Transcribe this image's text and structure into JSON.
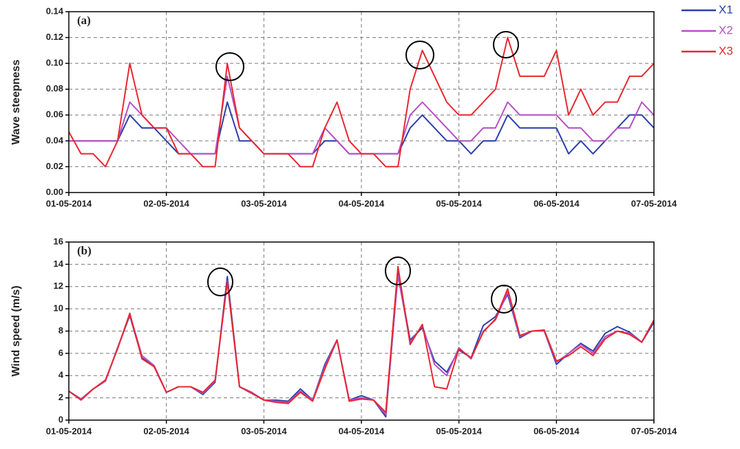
{
  "chart_data": [
    {
      "type": "line",
      "panel_label": "(a)",
      "ylabel": "Wave steepness",
      "legend": "outside right",
      "x": [
        0,
        0.125,
        0.25,
        0.375,
        0.5,
        0.625,
        0.75,
        0.875,
        1,
        1.125,
        1.25,
        1.375,
        1.5,
        1.625,
        1.75,
        1.875,
        2,
        2.125,
        2.25,
        2.375,
        2.5,
        2.625,
        2.75,
        2.875,
        3,
        3.125,
        3.25,
        3.375,
        3.5,
        3.625,
        3.75,
        3.875,
        4,
        4.125,
        4.25,
        4.375,
        4.5,
        4.625,
        4.75,
        4.875,
        5,
        5.125,
        5.25,
        5.375,
        5.5,
        5.625,
        5.75,
        5.875,
        6
      ],
      "xlim": [
        0,
        6
      ],
      "xticks": [
        {
          "value": 0,
          "label": "01-05-2014"
        },
        {
          "value": 1,
          "label": "02-05-2014"
        },
        {
          "value": 2,
          "label": "03-05-2014"
        },
        {
          "value": 3,
          "label": "04-05-2014"
        },
        {
          "value": 4,
          "label": "05-05-2014"
        },
        {
          "value": 5,
          "label": "06-05-2014"
        },
        {
          "value": 6,
          "label": "07-05-2014"
        }
      ],
      "ylim": [
        0,
        0.14
      ],
      "yticks": [
        {
          "value": 0,
          "label": "0.00"
        },
        {
          "value": 0.02,
          "label": "0.02"
        },
        {
          "value": 0.04,
          "label": "0.04"
        },
        {
          "value": 0.06,
          "label": "0.06"
        },
        {
          "value": 0.08,
          "label": "0.08"
        },
        {
          "value": 0.1,
          "label": "0.10"
        },
        {
          "value": 0.12,
          "label": "0.12"
        },
        {
          "value": 0.14,
          "label": "0.14"
        }
      ],
      "grid": true,
      "series": [
        {
          "name": "X1",
          "color": "#2b3fa8",
          "values": [
            0.04,
            0.04,
            0.04,
            0.04,
            0.04,
            0.06,
            0.05,
            0.05,
            0.04,
            0.03,
            0.03,
            0.03,
            0.03,
            0.07,
            0.04,
            0.04,
            0.03,
            0.03,
            0.03,
            0.03,
            0.03,
            0.04,
            0.04,
            0.03,
            0.03,
            0.03,
            0.03,
            0.03,
            0.05,
            0.06,
            0.05,
            0.04,
            0.04,
            0.03,
            0.04,
            0.04,
            0.06,
            0.05,
            0.05,
            0.05,
            0.05,
            0.03,
            0.04,
            0.03,
            0.04,
            0.05,
            0.06,
            0.06,
            0.05
          ]
        },
        {
          "name": "X2",
          "color": "#b44fc4",
          "values": [
            0.04,
            0.04,
            0.04,
            0.04,
            0.04,
            0.07,
            0.06,
            0.05,
            0.05,
            0.04,
            0.03,
            0.03,
            0.03,
            0.09,
            0.05,
            0.04,
            0.03,
            0.03,
            0.03,
            0.03,
            0.03,
            0.05,
            0.04,
            0.03,
            0.03,
            0.03,
            0.03,
            0.03,
            0.06,
            0.07,
            0.06,
            0.05,
            0.04,
            0.04,
            0.05,
            0.05,
            0.07,
            0.06,
            0.06,
            0.06,
            0.06,
            0.05,
            0.05,
            0.04,
            0.04,
            0.05,
            0.05,
            0.07,
            0.06
          ]
        },
        {
          "name": "X3",
          "color": "#e8262f",
          "values": [
            0.047,
            0.03,
            0.03,
            0.02,
            0.04,
            0.1,
            0.06,
            0.05,
            0.05,
            0.03,
            0.03,
            0.02,
            0.02,
            0.1,
            0.05,
            0.04,
            0.03,
            0.03,
            0.03,
            0.02,
            0.02,
            0.05,
            0.07,
            0.04,
            0.03,
            0.03,
            0.02,
            0.02,
            0.08,
            0.11,
            0.09,
            0.07,
            0.06,
            0.06,
            0.07,
            0.08,
            0.12,
            0.09,
            0.09,
            0.09,
            0.11,
            0.06,
            0.08,
            0.06,
            0.07,
            0.07,
            0.09,
            0.09,
            0.1
          ]
        }
      ]
    },
    {
      "type": "line",
      "panel_label": "(b)",
      "ylabel": "Wind speed (m/s)",
      "x": [
        0,
        0.125,
        0.25,
        0.375,
        0.5,
        0.625,
        0.75,
        0.875,
        1,
        1.125,
        1.25,
        1.375,
        1.5,
        1.625,
        1.75,
        1.875,
        2,
        2.125,
        2.25,
        2.375,
        2.5,
        2.625,
        2.75,
        2.875,
        3,
        3.125,
        3.25,
        3.375,
        3.5,
        3.625,
        3.75,
        3.875,
        4,
        4.125,
        4.25,
        4.375,
        4.5,
        4.625,
        4.75,
        4.875,
        5,
        5.125,
        5.25,
        5.375,
        5.5,
        5.625,
        5.75,
        5.875,
        6
      ],
      "xlim": [
        0,
        6
      ],
      "xticks": [
        {
          "value": 0,
          "label": "01-05-2014"
        },
        {
          "value": 1,
          "label": "02-05-2014"
        },
        {
          "value": 2,
          "label": "03-05-2014"
        },
        {
          "value": 3,
          "label": "04-05-2014"
        },
        {
          "value": 4,
          "label": "05-05-2014"
        },
        {
          "value": 5,
          "label": "06-05-2014"
        },
        {
          "value": 6,
          "label": "07-05-2014"
        }
      ],
      "ylim": [
        0,
        16
      ],
      "yticks": [
        0,
        2,
        4,
        6,
        8,
        10,
        12,
        14,
        16
      ],
      "grid": true,
      "series": [
        {
          "color": "#2b3fa8",
          "values": [
            2.6,
            1.9,
            2.8,
            3.5,
            6.5,
            9.4,
            5.6,
            4.8,
            2.5,
            3.0,
            3.0,
            2.3,
            3.4,
            12.9,
            3.0,
            2.5,
            1.8,
            1.8,
            1.7,
            2.8,
            1.8,
            5.0,
            7.2,
            1.8,
            2.2,
            1.8,
            0.3,
            13.2,
            7.2,
            8.3,
            5.3,
            4.3,
            6.3,
            5.6,
            8.5,
            9.3,
            11.3,
            7.4,
            8.0,
            8.0,
            5.0,
            6.0,
            6.9,
            6.2,
            7.8,
            8.4,
            7.9,
            7.0,
            8.8
          ]
        },
        {
          "color": "#b44fc4",
          "values": [
            2.6,
            1.9,
            2.8,
            3.5,
            6.5,
            9.5,
            5.8,
            4.9,
            2.5,
            3.0,
            3.0,
            2.4,
            3.5,
            12.5,
            3.0,
            2.5,
            1.8,
            1.7,
            1.6,
            2.6,
            1.8,
            4.8,
            7.2,
            1.8,
            2.0,
            1.8,
            0.5,
            13.0,
            7.0,
            8.5,
            5.0,
            4.0,
            6.5,
            5.5,
            8.0,
            9.0,
            11.5,
            7.5,
            8.0,
            8.0,
            5.2,
            6.0,
            6.8,
            6.0,
            7.5,
            8.0,
            7.8,
            7.0,
            9.0
          ]
        },
        {
          "color": "#e8262f",
          "values": [
            2.6,
            1.8,
            2.8,
            3.6,
            6.4,
            9.6,
            5.5,
            4.8,
            2.5,
            3.0,
            3.0,
            2.5,
            3.6,
            12.4,
            3.0,
            2.4,
            1.8,
            1.6,
            1.5,
            2.5,
            1.7,
            4.6,
            7.2,
            1.7,
            1.9,
            1.8,
            0.7,
            13.8,
            6.8,
            8.6,
            3.0,
            2.8,
            6.4,
            5.6,
            7.9,
            9.1,
            11.8,
            7.6,
            8.0,
            8.1,
            5.3,
            5.8,
            6.6,
            5.8,
            7.3,
            8.0,
            7.7,
            7.0,
            9.0
          ]
        }
      ]
    }
  ]
}
